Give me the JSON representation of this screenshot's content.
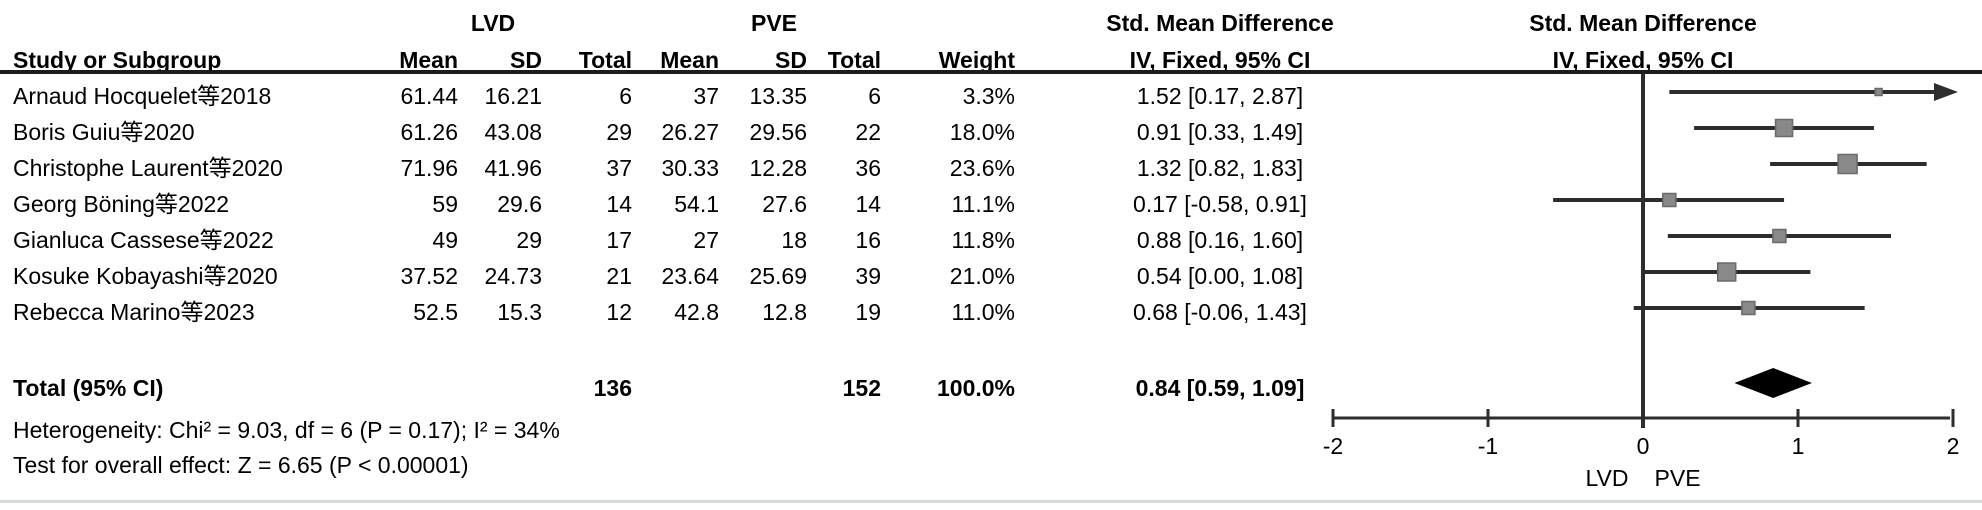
{
  "table": {
    "group_headers": {
      "lvd": "LVD",
      "pve": "PVE",
      "smd_table": "Std. Mean Difference",
      "smd_plot": "Std. Mean Difference"
    },
    "column_headers": {
      "study": "Study or Subgroup",
      "mean": "Mean",
      "sd": "SD",
      "total": "Total",
      "weight": "Weight",
      "ci": "IV, Fixed, 95% CI",
      "ci_plot": "IV, Fixed, 95% CI"
    },
    "studies": [
      {
        "name": "Arnaud Hocquelet等2018",
        "lvd_mean": "61.44",
        "lvd_sd": "16.21",
        "lvd_total": "6",
        "pve_mean": "37",
        "pve_sd": "13.35",
        "pve_total": "6",
        "weight": "3.3%",
        "smd_ci": "1.52 [0.17, 2.87]"
      },
      {
        "name": "Boris Guiu等2020",
        "lvd_mean": "61.26",
        "lvd_sd": "43.08",
        "lvd_total": "29",
        "pve_mean": "26.27",
        "pve_sd": "29.56",
        "pve_total": "22",
        "weight": "18.0%",
        "smd_ci": "0.91 [0.33, 1.49]"
      },
      {
        "name": "Christophe Laurent等2020",
        "lvd_mean": "71.96",
        "lvd_sd": "41.96",
        "lvd_total": "37",
        "pve_mean": "30.33",
        "pve_sd": "12.28",
        "pve_total": "36",
        "weight": "23.6%",
        "smd_ci": "1.32 [0.82, 1.83]"
      },
      {
        "name": "Georg Böning等2022",
        "lvd_mean": "59",
        "lvd_sd": "29.6",
        "lvd_total": "14",
        "pve_mean": "54.1",
        "pve_sd": "27.6",
        "pve_total": "14",
        "weight": "11.1%",
        "smd_ci": "0.17 [-0.58, 0.91]"
      },
      {
        "name": "Gianluca Cassese等2022",
        "lvd_mean": "49",
        "lvd_sd": "29",
        "lvd_total": "17",
        "pve_mean": "27",
        "pve_sd": "18",
        "pve_total": "16",
        "weight": "11.8%",
        "smd_ci": "0.88 [0.16, 1.60]"
      },
      {
        "name": "Kosuke Kobayashi等2020",
        "lvd_mean": "37.52",
        "lvd_sd": "24.73",
        "lvd_total": "21",
        "pve_mean": "23.64",
        "pve_sd": "25.69",
        "pve_total": "39",
        "weight": "21.0%",
        "smd_ci": "0.54 [0.00, 1.08]"
      },
      {
        "name": "Rebecca Marino等2023",
        "lvd_mean": "52.5",
        "lvd_sd": "15.3",
        "lvd_total": "12",
        "pve_mean": "42.8",
        "pve_sd": "12.8",
        "pve_total": "19",
        "weight": "11.0%",
        "smd_ci": "0.68 [-0.06, 1.43]"
      }
    ],
    "total_row": {
      "label": "Total (95% CI)",
      "lvd_total": "136",
      "pve_total": "152",
      "weight": "100.0%",
      "smd_ci": "0.84 [0.59, 1.09]"
    },
    "heterogeneity": "Heterogeneity: Chi² = 9.03, df = 6 (P = 0.17); I² = 34%",
    "overall_effect": "Test for overall effect: Z = 6.65 (P < 0.00001)"
  },
  "chart_data": {
    "type": "forest",
    "title": "",
    "effect_measure": "Std. Mean Difference",
    "method": "IV, Fixed, 95% CI",
    "comparison_labels": {
      "left": "LVD",
      "right": "PVE"
    },
    "studies": [
      {
        "name": "Arnaud Hocquelet等2018",
        "smd": 1.52,
        "ci_low": 0.17,
        "ci_high": 2.87,
        "weight_pct": 3.3,
        "clipped_high": true
      },
      {
        "name": "Boris Guiu等2020",
        "smd": 0.91,
        "ci_low": 0.33,
        "ci_high": 1.49,
        "weight_pct": 18.0,
        "clipped_high": false
      },
      {
        "name": "Christophe Laurent等2020",
        "smd": 1.32,
        "ci_low": 0.82,
        "ci_high": 1.83,
        "weight_pct": 23.6,
        "clipped_high": false
      },
      {
        "name": "Georg Böning等2022",
        "smd": 0.17,
        "ci_low": -0.58,
        "ci_high": 0.91,
        "weight_pct": 11.1,
        "clipped_high": false
      },
      {
        "name": "Gianluca Cassese等2022",
        "smd": 0.88,
        "ci_low": 0.16,
        "ci_high": 1.6,
        "weight_pct": 11.8,
        "clipped_high": false
      },
      {
        "name": "Kosuke Kobayashi等2020",
        "smd": 0.54,
        "ci_low": 0.0,
        "ci_high": 1.08,
        "weight_pct": 21.0,
        "clipped_high": false
      },
      {
        "name": "Rebecca Marino等2023",
        "smd": 0.68,
        "ci_low": -0.06,
        "ci_high": 1.43,
        "weight_pct": 11.0,
        "clipped_high": false
      }
    ],
    "total": {
      "label": "Total (95% CI)",
      "smd": 0.84,
      "ci_low": 0.59,
      "ci_high": 1.09,
      "weight_pct": 100.0
    },
    "x_axis": {
      "min": -2,
      "max": 2,
      "ticks": [
        "-2",
        "-1",
        "0",
        "1",
        "2"
      ],
      "tick_values": [
        -2,
        -1,
        0,
        1,
        2
      ]
    },
    "heterogeneity": {
      "chi2": 9.03,
      "df": 6,
      "p": "0.17",
      "i2_pct": 34
    },
    "overall_effect": {
      "z": 6.65,
      "p": "< 0.00001"
    },
    "legend_position": "none",
    "grid": false
  },
  "colors": {
    "text": "#000000",
    "rule": "#1c1c1c",
    "ci_line": "#2d2d2d",
    "square_fill": "#898989",
    "square_border": "#6a6a6a",
    "diamond": "#000000",
    "axis": "#2d2d2d",
    "bottom_border": "#d7dadc"
  }
}
